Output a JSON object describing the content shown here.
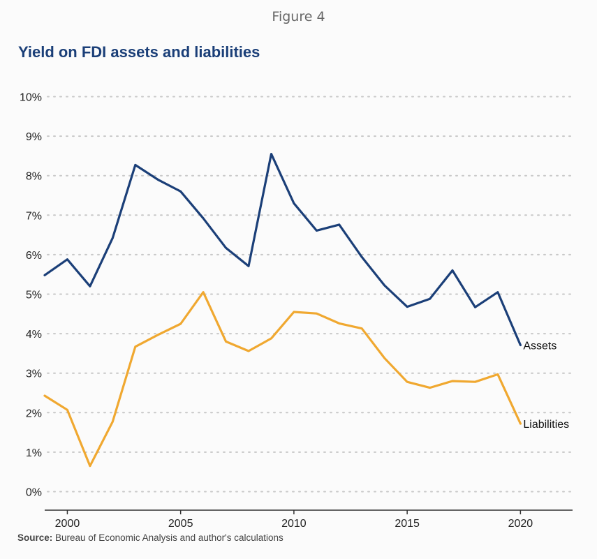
{
  "figure_label": "Figure 4",
  "chart_data": {
    "type": "line",
    "title": "Yield on FDI assets and liabilities",
    "xlabel": "",
    "ylabel": "",
    "x": [
      1999,
      2000,
      2001,
      2002,
      2003,
      2004,
      2005,
      2006,
      2007,
      2008,
      2009,
      2010,
      2011,
      2012,
      2013,
      2014,
      2015,
      2016,
      2017,
      2018,
      2019,
      2020
    ],
    "series": [
      {
        "name": "Assets",
        "color": "#1b3f78",
        "values": [
          5.48,
          5.88,
          5.2,
          6.42,
          8.27,
          7.9,
          7.6,
          6.92,
          6.17,
          5.71,
          8.55,
          7.3,
          6.61,
          6.76,
          5.94,
          5.22,
          4.68,
          4.88,
          5.6,
          4.67,
          5.05,
          3.71
        ]
      },
      {
        "name": "Liabilities",
        "color": "#f0a830",
        "values": [
          2.43,
          2.07,
          0.65,
          1.77,
          3.67,
          3.97,
          4.25,
          5.05,
          3.8,
          3.56,
          3.88,
          4.55,
          4.51,
          4.26,
          4.13,
          3.38,
          2.78,
          2.63,
          2.8,
          2.78,
          2.97,
          1.72
        ]
      }
    ],
    "xlim": [
      1999,
      2022.3
    ],
    "ylim": [
      0,
      10
    ],
    "xticks": [
      2000,
      2005,
      2010,
      2015,
      2020
    ],
    "yticks": [
      0,
      1,
      2,
      3,
      4,
      5,
      6,
      7,
      8,
      9,
      10
    ],
    "ytick_labels": [
      "0%",
      "1%",
      "2%",
      "3%",
      "4%",
      "5%",
      "6%",
      "7%",
      "8%",
      "9%",
      "10%"
    ],
    "grid": "horizontal dotted",
    "legend": "inline labels at line ends"
  },
  "source": {
    "label": "Source:",
    "text": " Bureau of Economic Analysis and author's calculations"
  }
}
